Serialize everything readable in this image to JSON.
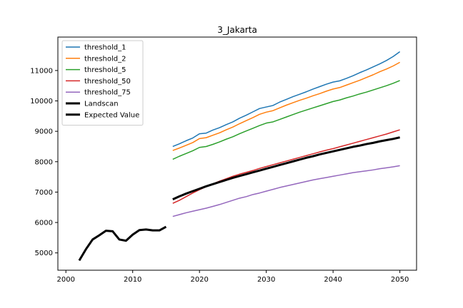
{
  "chart_data": {
    "type": "line",
    "title": "3_Jakarta",
    "xlabel": "",
    "ylabel": "",
    "xlim": [
      1998.8,
      2052.5
    ],
    "ylim": [
      4430,
      12100
    ],
    "x_ticks": [
      2000,
      2010,
      2020,
      2030,
      2040,
      2050
    ],
    "y_ticks": [
      5000,
      6000,
      7000,
      8000,
      9000,
      10000,
      11000
    ],
    "x_tick_labels": [
      "2000",
      "2010",
      "2020",
      "2030",
      "2040",
      "2050"
    ],
    "y_tick_labels": [
      "5000",
      "6000",
      "7000",
      "8000",
      "9000",
      "10000",
      "11000"
    ],
    "legend_position": "top-left",
    "grid": false,
    "series": [
      {
        "name": "threshold_1",
        "color": "#1f77b4",
        "line_width": "thin",
        "x": [
          2016,
          2017,
          2018,
          2019,
          2020,
          2021,
          2022,
          2023,
          2024,
          2025,
          2026,
          2027,
          2028,
          2029,
          2030,
          2031,
          2032,
          2033,
          2034,
          2035,
          2036,
          2037,
          2038,
          2039,
          2040,
          2041,
          2042,
          2043,
          2044,
          2045,
          2046,
          2047,
          2048,
          2049,
          2050
        ],
        "values": [
          8500,
          8590,
          8690,
          8780,
          8920,
          8940,
          9040,
          9120,
          9220,
          9310,
          9430,
          9530,
          9640,
          9750,
          9800,
          9850,
          9960,
          10050,
          10140,
          10220,
          10300,
          10390,
          10470,
          10550,
          10620,
          10660,
          10740,
          10830,
          10930,
          11020,
          11120,
          11220,
          11330,
          11460,
          11620
        ]
      },
      {
        "name": "threshold_2",
        "color": "#ff7f0e",
        "line_width": "thin",
        "x": [
          2016,
          2017,
          2018,
          2019,
          2020,
          2021,
          2022,
          2023,
          2024,
          2025,
          2026,
          2027,
          2028,
          2029,
          2030,
          2031,
          2032,
          2033,
          2034,
          2035,
          2036,
          2037,
          2038,
          2039,
          2040,
          2041,
          2042,
          2043,
          2044,
          2045,
          2046,
          2047,
          2048,
          2049,
          2050
        ],
        "values": [
          8370,
          8450,
          8540,
          8630,
          8760,
          8790,
          8870,
          8950,
          9050,
          9140,
          9250,
          9350,
          9450,
          9560,
          9630,
          9680,
          9770,
          9860,
          9940,
          10020,
          10090,
          10170,
          10240,
          10320,
          10390,
          10440,
          10520,
          10600,
          10680,
          10770,
          10860,
          10960,
          11050,
          11150,
          11270
        ]
      },
      {
        "name": "threshold_5",
        "color": "#2ca02c",
        "line_width": "thin",
        "x": [
          2016,
          2017,
          2018,
          2019,
          2020,
          2021,
          2022,
          2023,
          2024,
          2025,
          2026,
          2027,
          2028,
          2029,
          2030,
          2031,
          2032,
          2033,
          2034,
          2035,
          2036,
          2037,
          2038,
          2039,
          2040,
          2041,
          2042,
          2043,
          2044,
          2045,
          2046,
          2047,
          2048,
          2049,
          2050
        ],
        "values": [
          8080,
          8180,
          8270,
          8360,
          8470,
          8500,
          8570,
          8650,
          8740,
          8820,
          8920,
          9010,
          9100,
          9190,
          9270,
          9310,
          9390,
          9470,
          9550,
          9630,
          9700,
          9770,
          9840,
          9910,
          9980,
          10030,
          10100,
          10160,
          10230,
          10290,
          10360,
          10430,
          10500,
          10580,
          10670
        ]
      },
      {
        "name": "threshold_50",
        "color": "#d62728",
        "line_width": "thin",
        "x": [
          2016,
          2017,
          2018,
          2019,
          2020,
          2021,
          2022,
          2023,
          2024,
          2025,
          2026,
          2027,
          2028,
          2029,
          2030,
          2031,
          2032,
          2033,
          2034,
          2035,
          2036,
          2037,
          2038,
          2039,
          2040,
          2041,
          2042,
          2043,
          2044,
          2045,
          2046,
          2047,
          2048,
          2049,
          2050
        ],
        "values": [
          6630,
          6730,
          6850,
          6970,
          7080,
          7180,
          7270,
          7360,
          7440,
          7520,
          7590,
          7650,
          7710,
          7780,
          7840,
          7900,
          7960,
          8020,
          8080,
          8140,
          8200,
          8260,
          8320,
          8380,
          8430,
          8490,
          8550,
          8610,
          8670,
          8730,
          8790,
          8850,
          8910,
          8980,
          9050
        ]
      },
      {
        "name": "threshold_75",
        "color": "#9467bd",
        "line_width": "thin",
        "x": [
          2016,
          2017,
          2018,
          2019,
          2020,
          2021,
          2022,
          2023,
          2024,
          2025,
          2026,
          2027,
          2028,
          2029,
          2030,
          2031,
          2032,
          2033,
          2034,
          2035,
          2036,
          2037,
          2038,
          2039,
          2040,
          2041,
          2042,
          2043,
          2044,
          2045,
          2046,
          2047,
          2048,
          2049,
          2050
        ],
        "values": [
          6200,
          6260,
          6320,
          6370,
          6420,
          6470,
          6530,
          6590,
          6660,
          6730,
          6800,
          6850,
          6920,
          6970,
          7030,
          7090,
          7150,
          7200,
          7250,
          7300,
          7350,
          7400,
          7440,
          7480,
          7520,
          7560,
          7600,
          7640,
          7670,
          7700,
          7730,
          7770,
          7800,
          7830,
          7870
        ]
      },
      {
        "name": "Landscan",
        "color": "#000000",
        "line_width": "thick",
        "x": [
          2002,
          2003,
          2004,
          2005,
          2006,
          2007,
          2008,
          2009,
          2010,
          2011,
          2012,
          2013,
          2014,
          2015
        ],
        "values": [
          4750,
          5120,
          5440,
          5580,
          5730,
          5710,
          5440,
          5400,
          5600,
          5750,
          5770,
          5740,
          5740,
          5860
        ]
      },
      {
        "name": "Expected Value",
        "color": "#000000",
        "line_width": "thick",
        "x": [
          2016,
          2017,
          2018,
          2019,
          2020,
          2021,
          2022,
          2023,
          2024,
          2025,
          2026,
          2027,
          2028,
          2029,
          2030,
          2031,
          2032,
          2033,
          2034,
          2035,
          2036,
          2037,
          2038,
          2039,
          2040,
          2041,
          2042,
          2043,
          2044,
          2045,
          2046,
          2047,
          2048,
          2049,
          2050
        ],
        "values": [
          6760,
          6860,
          6950,
          7030,
          7110,
          7190,
          7260,
          7330,
          7400,
          7470,
          7530,
          7590,
          7650,
          7710,
          7770,
          7830,
          7890,
          7950,
          8010,
          8070,
          8130,
          8180,
          8240,
          8290,
          8340,
          8390,
          8440,
          8490,
          8530,
          8580,
          8620,
          8670,
          8710,
          8750,
          8800
        ]
      }
    ]
  }
}
